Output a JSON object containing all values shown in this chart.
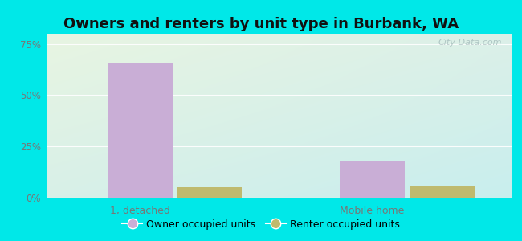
{
  "title": "Owners and renters by unit type in Burbank, WA",
  "categories": [
    "1, detached",
    "Mobile home"
  ],
  "owner_values": [
    66.0,
    18.0
  ],
  "renter_values": [
    5.0,
    5.5
  ],
  "owner_color": "#c9aed6",
  "renter_color": "#bfba6e",
  "yticks": [
    0,
    25,
    50,
    75
  ],
  "ytick_labels": [
    "0%",
    "25%",
    "50%",
    "75%"
  ],
  "ylim": [
    0,
    80
  ],
  "outer_bg": "#00e8e8",
  "plot_bg_topleft": "#e8f5e2",
  "plot_bg_bottomright": "#c8eeee",
  "legend_owner": "Owner occupied units",
  "legend_renter": "Renter occupied units",
  "watermark": "City-Data.com",
  "bar_width": 0.28,
  "title_fontsize": 13
}
